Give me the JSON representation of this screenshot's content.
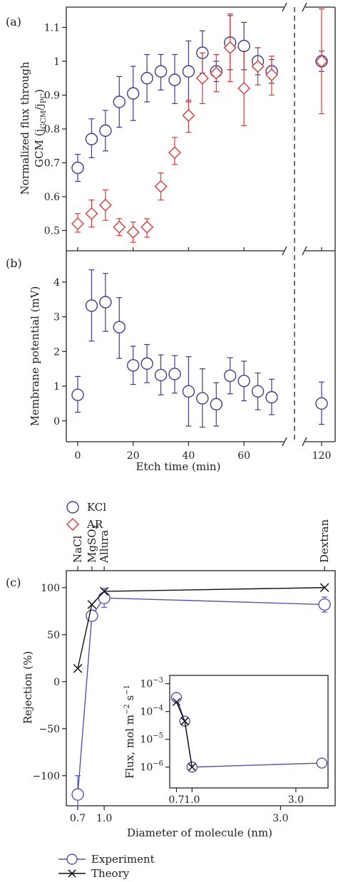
{
  "figure": {
    "panel_a": "(a)",
    "panel_b": "(b)",
    "panel_c": "(c)"
  },
  "chart_data": [
    {
      "id": "a",
      "type": "scatter",
      "ylabel_line1": "Normalized flux through",
      "ylabel_line2_main": "GCM (j",
      "ylabel_sub1": "GCM",
      "ylabel_slash": "/j",
      "ylabel_sub2": "PC",
      "ylabel_close": ")",
      "xlim": [
        0,
        72
      ],
      "ylim": [
        0.44,
        1.16
      ],
      "yticks": [
        0.5,
        0.6,
        0.7,
        0.8,
        0.9,
        1.0,
        1.1
      ],
      "ytick_labels": [
        "0.5",
        "0.6",
        "0.7",
        "0.8",
        "0.9",
        "1",
        "1.1"
      ],
      "break_x": 120,
      "series": [
        {
          "name": "KCl",
          "marker": "circle",
          "color": "#3d3d8f",
          "points": [
            {
              "x": 0,
              "y": 0.685,
              "lo": 0.645,
              "hi": 0.725
            },
            {
              "x": 5,
              "y": 0.77,
              "lo": 0.715,
              "hi": 0.83
            },
            {
              "x": 10,
              "y": 0.795,
              "lo": 0.735,
              "hi": 0.855
            },
            {
              "x": 15,
              "y": 0.88,
              "lo": 0.805,
              "hi": 0.955
            },
            {
              "x": 20,
              "y": 0.905,
              "lo": 0.825,
              "hi": 0.985
            },
            {
              "x": 25,
              "y": 0.95,
              "lo": 0.88,
              "hi": 1.02
            },
            {
              "x": 30,
              "y": 0.97,
              "lo": 0.915,
              "hi": 1.02
            },
            {
              "x": 35,
              "y": 0.945,
              "lo": 0.875,
              "hi": 1.02
            },
            {
              "x": 40,
              "y": 0.97,
              "lo": 0.88,
              "hi": 1.06
            },
            {
              "x": 45,
              "y": 1.025,
              "lo": 0.965,
              "hi": 1.09
            },
            {
              "x": 50,
              "y": 0.97,
              "lo": 0.94,
              "hi": 1.0
            },
            {
              "x": 55,
              "y": 1.055,
              "lo": 0.975,
              "hi": 1.135
            },
            {
              "x": 60,
              "y": 1.045,
              "lo": 0.975,
              "hi": 1.115
            },
            {
              "x": 65,
              "y": 1.0,
              "lo": 0.96,
              "hi": 1.04
            },
            {
              "x": 70,
              "y": 0.97,
              "lo": 0.935,
              "hi": 1.005
            },
            {
              "x": 120,
              "y": 1.0,
              "lo": 0.97,
              "hi": 1.03
            }
          ]
        },
        {
          "name": "AR",
          "marker": "diamond",
          "color": "#d63a3a",
          "points": [
            {
              "x": 0,
              "y": 0.52,
              "lo": 0.495,
              "hi": 0.55
            },
            {
              "x": 5,
              "y": 0.55,
              "lo": 0.51,
              "hi": 0.59
            },
            {
              "x": 10,
              "y": 0.575,
              "lo": 0.53,
              "hi": 0.62
            },
            {
              "x": 15,
              "y": 0.51,
              "lo": 0.485,
              "hi": 0.535
            },
            {
              "x": 20,
              "y": 0.495,
              "lo": 0.465,
              "hi": 0.525
            },
            {
              "x": 25,
              "y": 0.51,
              "lo": 0.48,
              "hi": 0.535
            },
            {
              "x": 30,
              "y": 0.63,
              "lo": 0.59,
              "hi": 0.67
            },
            {
              "x": 35,
              "y": 0.73,
              "lo": 0.695,
              "hi": 0.775
            },
            {
              "x": 40,
              "y": 0.84,
              "lo": 0.79,
              "hi": 0.885
            },
            {
              "x": 45,
              "y": 0.95,
              "lo": 0.875,
              "hi": 1.025
            },
            {
              "x": 50,
              "y": 0.965,
              "lo": 0.91,
              "hi": 1.02
            },
            {
              "x": 55,
              "y": 1.04,
              "lo": 0.94,
              "hi": 1.14
            },
            {
              "x": 60,
              "y": 0.92,
              "lo": 0.81,
              "hi": 1.03
            },
            {
              "x": 65,
              "y": 0.985,
              "lo": 0.93,
              "hi": 1.04
            },
            {
              "x": 70,
              "y": 0.96,
              "lo": 0.9,
              "hi": 1.015
            },
            {
              "x": 120,
              "y": 1.0,
              "lo": 0.845,
              "hi": 1.155
            }
          ]
        }
      ]
    },
    {
      "id": "b",
      "type": "scatter",
      "xlabel": "Etch time (min)",
      "ylabel": "Membrane potential (mV)",
      "xlim": [
        0,
        72
      ],
      "ylim": [
        -0.6,
        4.9
      ],
      "xticks": [
        0,
        20,
        40,
        60,
        120
      ],
      "xtick_labels": [
        "0",
        "20",
        "40",
        "60",
        "120"
      ],
      "yticks": [
        0,
        1,
        2,
        3,
        4
      ],
      "ytick_labels": [
        "0",
        "1",
        "2",
        "3",
        "4"
      ],
      "break_x": 120,
      "series": [
        {
          "name": "KCl",
          "marker": "circle",
          "color": "#3d3d8f",
          "points": [
            {
              "x": 0,
              "y": 0.75,
              "lo": 0.25,
              "hi": 1.28
            },
            {
              "x": 5,
              "y": 3.32,
              "lo": 2.3,
              "hi": 4.35
            },
            {
              "x": 10,
              "y": 3.42,
              "lo": 2.58,
              "hi": 4.25
            },
            {
              "x": 15,
              "y": 2.7,
              "lo": 1.8,
              "hi": 3.55
            },
            {
              "x": 20,
              "y": 1.6,
              "lo": 1.05,
              "hi": 2.15
            },
            {
              "x": 25,
              "y": 1.65,
              "lo": 1.1,
              "hi": 2.2
            },
            {
              "x": 30,
              "y": 1.32,
              "lo": 0.75,
              "hi": 1.9
            },
            {
              "x": 35,
              "y": 1.35,
              "lo": 0.8,
              "hi": 1.88
            },
            {
              "x": 40,
              "y": 0.85,
              "lo": -0.15,
              "hi": 1.85
            },
            {
              "x": 45,
              "y": 0.65,
              "lo": -0.18,
              "hi": 1.5
            },
            {
              "x": 50,
              "y": 0.48,
              "lo": -0.15,
              "hi": 1.1
            },
            {
              "x": 55,
              "y": 1.3,
              "lo": 0.78,
              "hi": 1.82
            },
            {
              "x": 60,
              "y": 1.15,
              "lo": 0.58,
              "hi": 1.72
            },
            {
              "x": 65,
              "y": 0.85,
              "lo": 0.32,
              "hi": 1.38
            },
            {
              "x": 70,
              "y": 0.68,
              "lo": 0.18,
              "hi": 1.2
            },
            {
              "x": 120,
              "y": 0.5,
              "lo": -0.1,
              "hi": 1.12
            }
          ]
        }
      ]
    },
    {
      "id": "c",
      "type": "line",
      "xlabel": "Diameter of molecule (nm)",
      "ylabel": "Rejection (%)",
      "xlim": [
        0.57,
        3.62
      ],
      "ylim": [
        -132,
        118
      ],
      "xticks": [
        0.7,
        1.0,
        3.0
      ],
      "xtick_labels": [
        "0.7",
        "1.0",
        "3.0"
      ],
      "yticks": [
        -100,
        -50,
        0,
        50,
        100
      ],
      "ytick_labels": [
        "−100",
        "−50",
        "0",
        "50",
        "100"
      ],
      "top_labels": [
        {
          "x": 0.7,
          "text": "NaCl"
        },
        {
          "x": 0.86,
          "text": "MgSO",
          "sub": "4"
        },
        {
          "x": 1.0,
          "text": "Allura"
        },
        {
          "x": 3.5,
          "text": "Dextran"
        }
      ],
      "series": [
        {
          "name": "Experiment",
          "marker": "circle",
          "color": "#5555aa",
          "points": [
            {
              "x": 0.7,
              "y": -120,
              "lo": -132,
              "hi": -100
            },
            {
              "x": 0.86,
              "y": 70,
              "lo": 65,
              "hi": 76
            },
            {
              "x": 1.0,
              "y": 89,
              "lo": 79,
              "hi": 99
            },
            {
              "x": 3.5,
              "y": 82,
              "lo": 74,
              "hi": 90
            }
          ]
        },
        {
          "name": "Theory",
          "marker": "x",
          "color": "#111111",
          "points": [
            {
              "x": 0.7,
              "y": 14
            },
            {
              "x": 0.86,
              "y": 82
            },
            {
              "x": 1.0,
              "y": 96
            },
            {
              "x": 3.5,
              "y": 100
            }
          ]
        }
      ],
      "inset": {
        "ylabel_main": "Flux, mol m",
        "ylabel_sup1": "−2",
        "ylabel_mid": " s",
        "ylabel_sup2": "−1",
        "scale": "log",
        "xlim": [
          0.57,
          3.62
        ],
        "ylim_log10": [
          -6.75,
          -2.7
        ],
        "xticks": [
          0.7,
          1.0,
          3.0
        ],
        "xtick_labels": [
          "0.7",
          "1.0",
          "3.0"
        ],
        "yticks_exp": [
          -6,
          -5,
          -4,
          -3
        ],
        "ytick_base": "10",
        "ytick_exps": [
          "−6",
          "−5",
          "−4",
          "−3"
        ],
        "series": [
          {
            "name": "Experiment",
            "marker": "circle",
            "color": "#5555aa",
            "points": [
              {
                "x": 0.7,
                "y": 0.00032
              },
              {
                "x": 0.86,
                "y": 4.5e-05
              },
              {
                "x": 1.0,
                "y": 1e-06
              },
              {
                "x": 3.5,
                "y": 1.4e-06
              }
            ]
          },
          {
            "name": "Theory",
            "marker": "x",
            "color": "#111111",
            "points": [
              {
                "x": 0.7,
                "y": 0.00022
              },
              {
                "x": 0.86,
                "y": 4.5e-05
              },
              {
                "x": 1.0,
                "y": 1e-06
              }
            ]
          }
        ]
      }
    }
  ],
  "legend_ab": [
    {
      "label": "KCl",
      "marker": "circle",
      "color": "#3d3d8f"
    },
    {
      "label": "AR",
      "marker": "diamond",
      "color": "#d63a3a"
    }
  ],
  "legend_c": [
    {
      "label": "Experiment",
      "marker": "circle",
      "color": "#5555aa"
    },
    {
      "label": "Theory",
      "marker": "x",
      "color": "#111111"
    }
  ]
}
